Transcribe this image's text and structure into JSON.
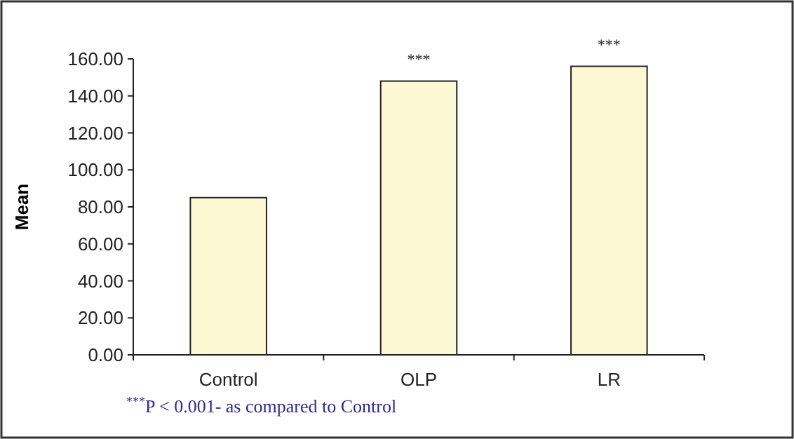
{
  "chart_data": {
    "type": "bar",
    "ylabel": "Mean",
    "categories": [
      "Control",
      "OLP",
      "LR"
    ],
    "values": [
      85,
      148,
      156
    ],
    "color": "#fcf8d4",
    "ylim": [
      0,
      160
    ],
    "yticks": [
      {
        "value": 0,
        "label": "0.00"
      },
      {
        "value": 20,
        "label": "20.00"
      },
      {
        "value": 40,
        "label": "40.00"
      },
      {
        "value": 60,
        "label": "60.00"
      },
      {
        "value": 80,
        "label": "80.00"
      },
      {
        "value": 100,
        "label": "100.00"
      },
      {
        "value": 120,
        "label": "120.00"
      },
      {
        "value": 140,
        "label": "140.00"
      },
      {
        "value": 160,
        "label": "160.00"
      }
    ],
    "grid": false,
    "annotations": [
      {
        "text": "***",
        "x": "OLP",
        "y": 148
      },
      {
        "text": "***",
        "x": "LR",
        "y": 156
      },
      "$^{***}$P < 0.001- as compared to Control"
    ]
  }
}
